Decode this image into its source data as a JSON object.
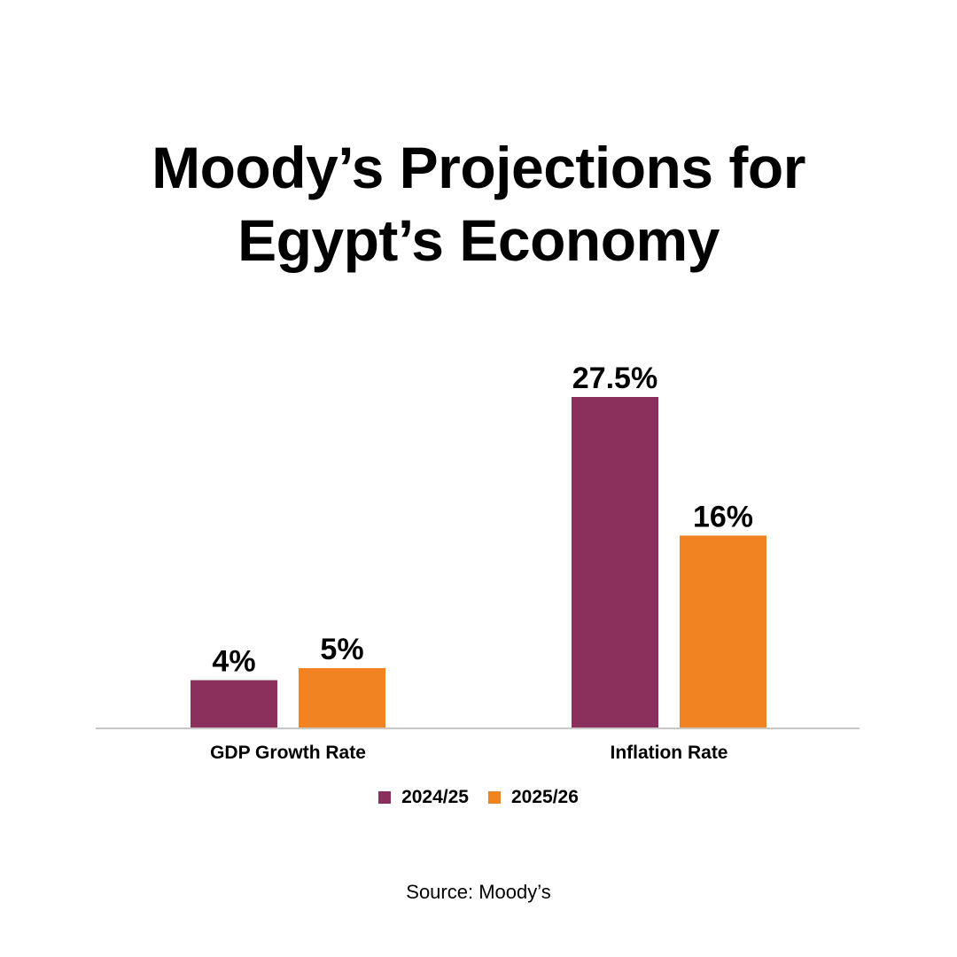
{
  "title_lines": [
    "Moody’s Projections for",
    "Egypt’s Economy"
  ],
  "source": "Source: Moody’s",
  "colors": {
    "series_2024_25": "#8B2F5C",
    "series_2025_26": "#F28322",
    "axis": "#C8C8C8"
  },
  "chart_data": {
    "type": "bar",
    "title": "Moody’s Projections for Egypt’s Economy",
    "categories": [
      "GDP Growth Rate",
      "Inflation Rate"
    ],
    "series": [
      {
        "name": "2024/25",
        "values": [
          4,
          27.5
        ],
        "labels": [
          "4%",
          "27.5%"
        ]
      },
      {
        "name": "2025/26",
        "values": [
          5,
          16
        ],
        "labels": [
          "5%",
          "16%"
        ]
      }
    ],
    "xlabel": "",
    "ylabel": "",
    "ylim": [
      0,
      27.5
    ],
    "grid": false,
    "legend": "bottom"
  }
}
